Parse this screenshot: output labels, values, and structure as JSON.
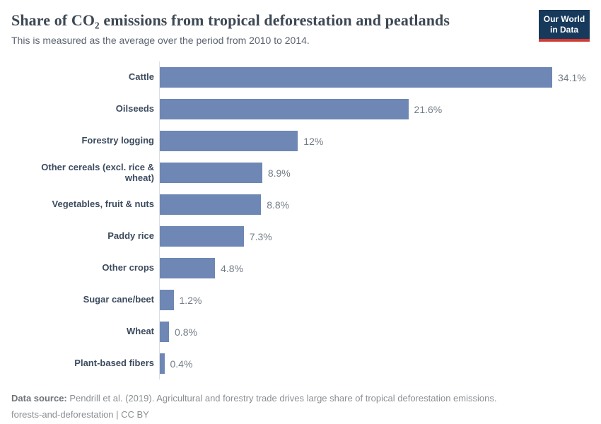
{
  "header": {
    "title": "Share of CO₂ emissions from tropical deforestation and peatlands",
    "subtitle": "This is measured as the average over the period from 2010 to 2014.",
    "logo": {
      "line1": "Our World",
      "line2": "in Data"
    }
  },
  "chart_data": {
    "type": "bar",
    "orientation": "horizontal",
    "title": "Share of CO₂ emissions from tropical deforestation and peatlands",
    "subtitle": "This is measured as the average over the period from 2010 to 2014.",
    "categories": [
      "Cattle",
      "Oilseeds",
      "Forestry logging",
      "Other cereals (excl. rice & wheat)",
      "Vegetables, fruit & nuts",
      "Paddy rice",
      "Other crops",
      "Sugar cane/beet",
      "Wheat",
      "Plant-based fibers"
    ],
    "values": [
      34.1,
      21.6,
      12,
      8.9,
      8.8,
      7.3,
      4.8,
      1.2,
      0.8,
      0.4
    ],
    "value_labels": [
      "34.1%",
      "21.6%",
      "12%",
      "8.9%",
      "8.8%",
      "7.3%",
      "4.8%",
      "1.2%",
      "0.8%",
      "0.4%"
    ],
    "xlabel": "",
    "ylabel": "",
    "xlim": [
      0,
      34.1
    ],
    "unit": "%",
    "grid": false,
    "legend": false,
    "bar_color": "#6e87b4"
  },
  "footer": {
    "source_label": "Data source:",
    "source_text": " Pendrill et al. (2019). Agricultural and forestry trade drives large share of tropical deforestation emissions.",
    "line2": "forests-and-deforestation | CC BY"
  },
  "colors": {
    "bar": "#6e87b4",
    "logo_navy": "#173a5c",
    "logo_red": "#d23a32",
    "axis_line": "#dbe0e5",
    "title_text": "#3d4853",
    "category_text": "#3c4b5f",
    "value_text": "#747d87"
  }
}
